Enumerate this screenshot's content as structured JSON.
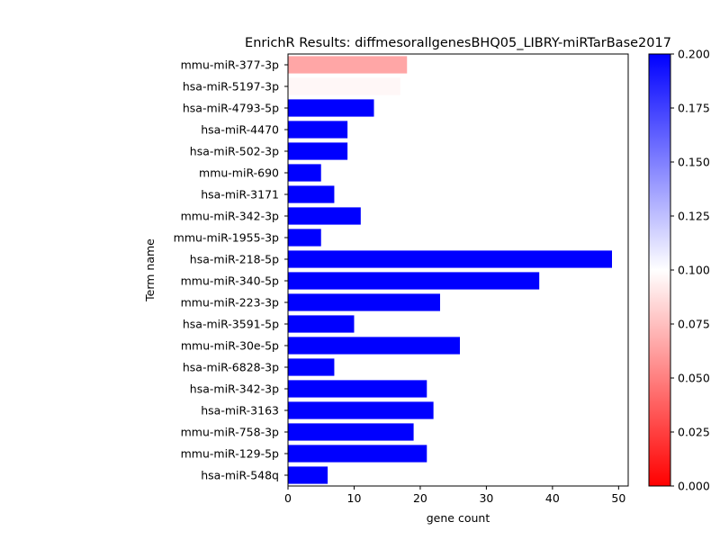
{
  "chart_data": {
    "type": "bar",
    "orientation": "horizontal",
    "title": "EnrichR Results: diffmesorallgenesBHQ05_LIBRY-miRTarBase2017",
    "xlabel": "gene count",
    "ylabel": "Term name",
    "xlim": [
      0,
      51.45
    ],
    "xticks": [
      0,
      10,
      20,
      30,
      40,
      50
    ],
    "categories": [
      "mmu-miR-377-3p",
      "hsa-miR-5197-3p",
      "hsa-miR-4793-5p",
      "hsa-miR-4470",
      "hsa-miR-502-3p",
      "mmu-miR-690",
      "hsa-miR-3171",
      "mmu-miR-342-3p",
      "mmu-miR-1955-3p",
      "hsa-miR-218-5p",
      "mmu-miR-340-5p",
      "mmu-miR-223-3p",
      "hsa-miR-3591-5p",
      "mmu-miR-30e-5p",
      "hsa-miR-6828-3p",
      "hsa-miR-342-3p",
      "hsa-miR-3163",
      "mmu-miR-758-3p",
      "mmu-miR-129-5p",
      "hsa-miR-548q"
    ],
    "values": [
      18,
      17,
      13,
      9,
      9,
      5,
      7,
      11,
      5,
      49,
      38,
      23,
      10,
      26,
      7,
      21,
      22,
      19,
      21,
      6
    ],
    "color_values": [
      0.065,
      0.097,
      0.2,
      0.2,
      0.2,
      0.2,
      0.2,
      0.2,
      0.2,
      0.2,
      0.2,
      0.2,
      0.2,
      0.2,
      0.2,
      0.2,
      0.2,
      0.2,
      0.2,
      0.2
    ],
    "colorbar": {
      "colormap": "bwr_r",
      "range": [
        0.0,
        0.2
      ],
      "ticks": [
        "0.000",
        "0.025",
        "0.050",
        "0.075",
        "0.100",
        "0.125",
        "0.150",
        "0.175",
        "0.200"
      ],
      "low_color": "#ff0000",
      "mid_color": "#ffffff",
      "high_color": "#0000ff"
    },
    "grid": false,
    "legend": "none"
  }
}
